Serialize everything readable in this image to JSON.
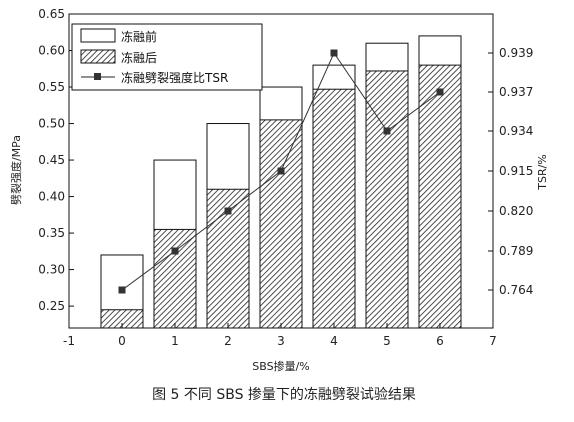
{
  "chart_data": {
    "type": "bar",
    "caption": "图 5  不同 SBS 掺量下的冻融劈裂试验结果",
    "xlabel": "SBS掺量/%",
    "ylabel_left": "劈裂强度/MPa",
    "ylabel_right": "TSR/%",
    "x_ticks": [
      "-1",
      "0",
      "1",
      "2",
      "3",
      "4",
      "5",
      "6",
      "7"
    ],
    "xlim": [
      -1,
      7
    ],
    "ylim_left": [
      0.22,
      0.65
    ],
    "y_ticks_left": [
      "0.25",
      "0.30",
      "0.35",
      "0.40",
      "0.45",
      "0.50",
      "0.55",
      "0.60",
      "0.65"
    ],
    "y_ticks_right": [
      "0.764",
      "0.789",
      "0.820",
      "0.915",
      "0.934",
      "0.937",
      "0.939"
    ],
    "x": [
      0,
      1,
      2,
      3,
      4,
      5,
      6
    ],
    "series": [
      {
        "name": "冻融前",
        "style": "open",
        "values": [
          0.32,
          0.45,
          0.5,
          0.55,
          0.58,
          0.61,
          0.62
        ]
      },
      {
        "name": "冻融后",
        "style": "hatched",
        "values": [
          0.245,
          0.355,
          0.41,
          0.505,
          0.547,
          0.572,
          0.58
        ]
      },
      {
        "name": "冻融劈裂强度比TSR",
        "style": "line-square-marker",
        "axis": "right",
        "values": [
          0.764,
          0.789,
          0.82,
          0.915,
          0.939,
          0.934,
          0.937
        ]
      }
    ],
    "legend_position": "top-left",
    "grid": false
  }
}
